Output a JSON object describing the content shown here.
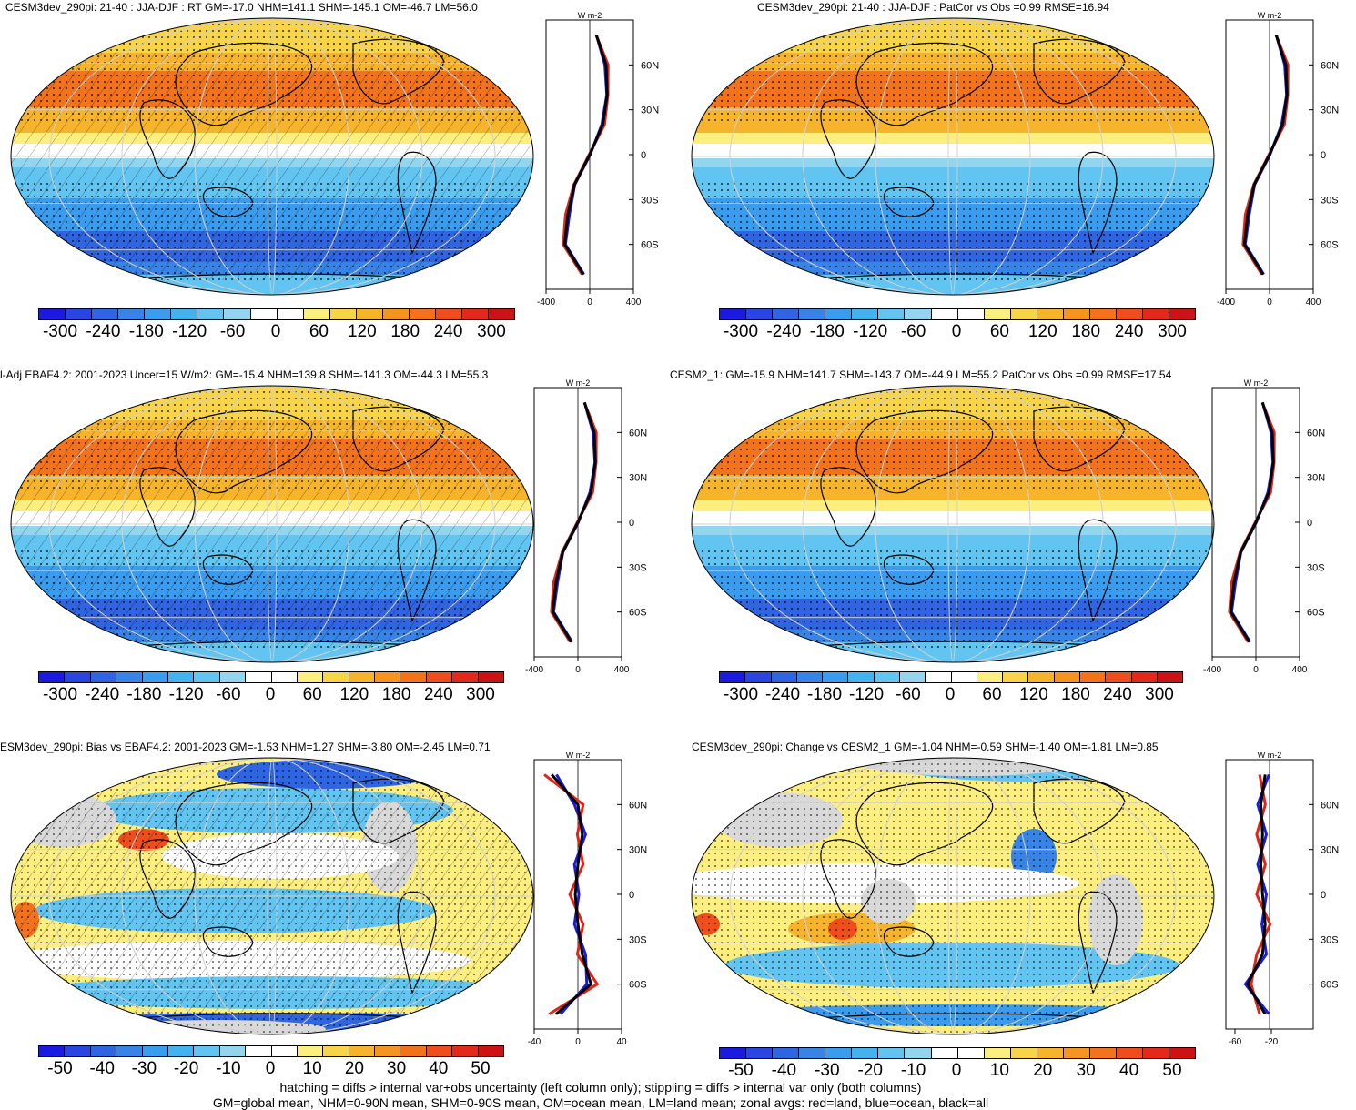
{
  "colors": {
    "temperature_scale": [
      "#1a1ae0",
      "#2a45e0",
      "#2f65e0",
      "#3784e6",
      "#3a9cee",
      "#45b2f0",
      "#62c4f0",
      "#93d5ef",
      "#ffffff",
      "#ffffff",
      "#fdee80",
      "#f8d448",
      "#f6b42c",
      "#f59421",
      "#f2731c",
      "#ee4e1c",
      "#e32a1a",
      "#cc1214"
    ],
    "land_line": "#e2231a",
    "ocean_line": "#1a1ae0",
    "all_line": "#000000"
  },
  "panels": [
    {
      "title": "CESM3dev_290pi: 21-40 : JJA-DJF : RT GM=-17.0 NHM=141.1 SHM=-145.1 OM=-46.7 LM=56.0",
      "kind": "abs",
      "colorbar_labels": [
        "-300",
        "-240",
        "-180",
        "-120",
        "-60",
        "0",
        "60",
        "120",
        "180",
        "240",
        "300"
      ],
      "profile_xticks": [
        "-400",
        "0",
        "400"
      ],
      "profile_unit": "W m-2",
      "lat_ticks": [
        "60N",
        "30N",
        "0",
        "30S",
        "60S"
      ]
    },
    {
      "title": "CESM3dev_290pi: 21-40 : JJA-DJF : PatCor vs Obs =0.99 RMSE=16.94",
      "kind": "abs",
      "colorbar_labels": [
        "-300",
        "-240",
        "-180",
        "-120",
        "-60",
        "0",
        "60",
        "120",
        "180",
        "240",
        "300"
      ],
      "profile_xticks": [
        "-400",
        "0",
        "400"
      ],
      "profile_unit": "W m-2",
      "lat_ticks": [
        "60N",
        "30N",
        "0",
        "30S",
        "60S"
      ]
    },
    {
      "title": "l-Adj EBAF4.2: 2001-2023 Uncer=15 W/m2: GM=-15.4 NHM=139.8 SHM=-141.3 OM=-44.3 LM=55.3",
      "kind": "abs",
      "colorbar_labels": [
        "-300",
        "-240",
        "-180",
        "-120",
        "-60",
        "0",
        "60",
        "120",
        "180",
        "240",
        "300"
      ],
      "profile_xticks": [
        "-400",
        "0",
        "400"
      ],
      "profile_unit": "W m-2",
      "lat_ticks": [
        "60N",
        "30N",
        "0",
        "30S",
        "60S"
      ]
    },
    {
      "title": "CESM2_1: GM=-15.9 NHM=141.7 SHM=-143.7 OM=-44.9 LM=55.2 PatCor vs Obs =0.99 RMSE=17.54",
      "kind": "abs",
      "colorbar_labels": [
        "-300",
        "-240",
        "-180",
        "-120",
        "-60",
        "0",
        "60",
        "120",
        "180",
        "240",
        "300"
      ],
      "profile_xticks": [
        "-400",
        "0",
        "400"
      ],
      "profile_unit": "W m-2",
      "lat_ticks": [
        "60N",
        "30N",
        "0",
        "30S",
        "60S"
      ]
    },
    {
      "title": "ESM3dev_290pi: Bias vs EBAF4.2: 2001-2023 GM=-1.53 NHM=1.27 SHM=-3.80 OM=-2.45 LM=0.71",
      "kind": "diff",
      "colorbar_labels": [
        "-50",
        "-40",
        "-30",
        "-20",
        "-10",
        "0",
        "10",
        "20",
        "30",
        "40",
        "50"
      ],
      "profile_xticks": [
        "-40",
        "0",
        "40"
      ],
      "profile_unit": "W m-2",
      "lat_ticks": [
        "60N",
        "30N",
        "0",
        "30S",
        "60S"
      ]
    },
    {
      "title": "CESM3dev_290pi: Change vs CESM2_1 GM=-1.04 NHM=-0.59 SHM=-1.40 OM=-1.81 LM=0.85",
      "kind": "diff",
      "colorbar_labels": [
        "-50",
        "-40",
        "-30",
        "-20",
        "-10",
        "0",
        "10",
        "20",
        "30",
        "40",
        "50"
      ],
      "profile_xticks": [
        "-60",
        "-20"
      ],
      "profile_unit": "W m-2",
      "lat_ticks": [
        "60N",
        "30N",
        "0",
        "30S",
        "60S"
      ]
    }
  ],
  "footer": {
    "line1": "hatching = diffs > internal var+obs uncertainty (left column only); stippling = diffs > internal var only (both columns)",
    "line2": "GM=global mean, NHM=0-90N mean, SHM=0-90S mean, OM=ocean mean, LM=land mean; zonal avgs: red=land, blue=ocean, black=all"
  },
  "chart_data": [
    {
      "type": "heatmap",
      "panel": 1,
      "title": "CESM3dev_290pi: 21-40 : JJA-DJF : RT GM=-17.0 NHM=141.1 SHM=-145.1 OM=-46.7 LM=56.0",
      "colorbar_range": [
        -300,
        300
      ],
      "zonal_mean_profile": {
        "lat": [
          80,
          60,
          40,
          20,
          0,
          -20,
          -40,
          -60,
          -80
        ],
        "all": [
          60,
          150,
          160,
          120,
          0,
          -140,
          -200,
          -230,
          -60
        ]
      }
    },
    {
      "type": "heatmap",
      "panel": 2,
      "title": "CESM3dev_290pi: 21-40 : JJA-DJF : PatCor vs Obs =0.99 RMSE=16.94",
      "colorbar_range": [
        -300,
        300
      ],
      "zonal_mean_profile": {
        "lat": [
          80,
          60,
          40,
          20,
          0,
          -20,
          -40,
          -60,
          -80
        ],
        "all": [
          60,
          150,
          160,
          120,
          0,
          -140,
          -200,
          -230,
          -60
        ]
      }
    },
    {
      "type": "heatmap",
      "panel": 3,
      "title": "l-Adj EBAF4.2: 2001-2023 Uncer=15 W/m2: GM=-15.4 NHM=139.8 SHM=-141.3 OM=-44.3 LM=55.3",
      "colorbar_range": [
        -300,
        300
      ],
      "zonal_mean_profile": {
        "lat": [
          80,
          60,
          40,
          20,
          0,
          -20,
          -40,
          -60,
          -80
        ],
        "all": [
          60,
          150,
          160,
          120,
          0,
          -140,
          -200,
          -230,
          -60
        ]
      }
    },
    {
      "type": "heatmap",
      "panel": 4,
      "title": "CESM2_1: GM=-15.9 NHM=141.7 SHM=-143.7 OM=-44.9 LM=55.2 PatCor vs Obs =0.99 RMSE=17.54",
      "colorbar_range": [
        -300,
        300
      ],
      "zonal_mean_profile": {
        "lat": [
          80,
          60,
          40,
          20,
          0,
          -20,
          -40,
          -60,
          -80
        ],
        "all": [
          60,
          150,
          160,
          120,
          0,
          -140,
          -200,
          -230,
          -60
        ]
      }
    },
    {
      "type": "heatmap",
      "panel": 5,
      "title": "ESM3dev_290pi: Bias vs EBAF4.2: 2001-2023 GM=-1.53 NHM=1.27 SHM=-3.80 OM=-2.45 LM=0.71",
      "colorbar_range": [
        -50,
        50
      ],
      "zonal_mean_profile": {
        "lat": [
          80,
          60,
          40,
          20,
          0,
          -20,
          -40,
          -60,
          -80
        ],
        "all": [
          -30,
          0,
          5,
          0,
          -3,
          0,
          5,
          15,
          -25
        ]
      }
    },
    {
      "type": "heatmap",
      "panel": 6,
      "title": "CESM3dev_290pi: Change vs CESM2_1 GM=-1.04 NHM=-0.59 SHM=-1.40 OM=-1.81 LM=0.85",
      "colorbar_range": [
        -50,
        50
      ],
      "zonal_mean_profile": {
        "lat": [
          80,
          60,
          40,
          20,
          0,
          -20,
          -40,
          -60,
          -80
        ],
        "all": [
          -5,
          -10,
          -8,
          -10,
          -8,
          -5,
          -8,
          -25,
          -5
        ]
      }
    }
  ]
}
